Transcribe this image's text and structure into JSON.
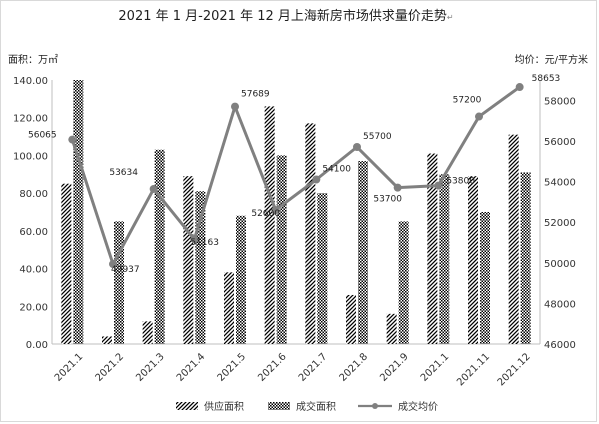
{
  "chart_data": {
    "type": "bar",
    "title": "2021 年 1 月-2021 年 12 月上海新房市场供求量价走势",
    "title_mark": "↵",
    "ylabel": "面积：万㎡",
    "y2label": "均价：元/平方米",
    "categories": [
      "2021.1",
      "2021.2",
      "2021.3",
      "2021.4",
      "2021.5",
      "2021.6",
      "2021.7",
      "2021.8",
      "2021.9",
      "2021.1",
      "2021.11",
      "2021.12"
    ],
    "ylim": [
      0,
      140
    ],
    "y_ticks": [
      "0.00",
      "20.00",
      "40.00",
      "60.00",
      "80.00",
      "100.00",
      "120.00",
      "140.00"
    ],
    "y2lim": [
      46000,
      59000
    ],
    "y2_ticks": [
      "46000",
      "48000",
      "50000",
      "52000",
      "54000",
      "56000",
      "58000"
    ],
    "grid": false,
    "legend_position": "bottom",
    "series": [
      {
        "name": "供应面积",
        "kind": "bar",
        "pattern": "diagonal-hatch",
        "values": [
          85,
          4,
          12,
          89,
          38,
          126,
          117,
          26,
          16,
          101,
          89,
          111
        ]
      },
      {
        "name": "成交面积",
        "kind": "bar",
        "pattern": "checker",
        "values": [
          140,
          65,
          103,
          81,
          68,
          100,
          80,
          97,
          65,
          90,
          70,
          91
        ]
      },
      {
        "name": "成交均价",
        "kind": "line",
        "axis": "right",
        "color": "#808080",
        "values": [
          56065,
          49937,
          53634,
          51163,
          57689,
          52600,
          54100,
          55700,
          53700,
          53800,
          57200,
          58653
        ]
      }
    ],
    "data_labels": [
      "56065",
      "49937",
      "53634",
      "51163",
      "57689",
      "52600",
      "54100",
      "55700",
      "53700",
      "53800",
      "57200",
      "58653"
    ],
    "colors": {
      "line": "#808080",
      "bar_ink": "#000000",
      "axis": "#bfbfbf"
    }
  }
}
